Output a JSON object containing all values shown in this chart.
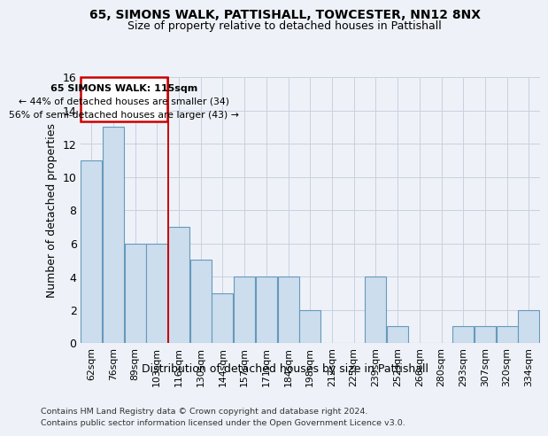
{
  "title1": "65, SIMONS WALK, PATTISHALL, TOWCESTER, NN12 8NX",
  "title2": "Size of property relative to detached houses in Pattishall",
  "xlabel": "Distribution of detached houses by size in Pattishall",
  "ylabel": "Number of detached properties",
  "categories": [
    "62sqm",
    "76sqm",
    "89sqm",
    "103sqm",
    "116sqm",
    "130sqm",
    "144sqm",
    "157sqm",
    "171sqm",
    "184sqm",
    "198sqm",
    "212sqm",
    "225sqm",
    "239sqm",
    "252sqm",
    "266sqm",
    "280sqm",
    "293sqm",
    "307sqm",
    "320sqm",
    "334sqm"
  ],
  "values": [
    11,
    13,
    6,
    6,
    7,
    5,
    3,
    4,
    4,
    4,
    2,
    0,
    0,
    4,
    1,
    0,
    0,
    1,
    1,
    1,
    2
  ],
  "bar_color": "#ccdded",
  "bar_edge_color": "#6699bb",
  "annotation_title": "65 SIMONS WALK: 115sqm",
  "annotation_line1": "← 44% of detached houses are smaller (34)",
  "annotation_line2": "56% of semi-detached houses are larger (43) →",
  "ylim": [
    0,
    16
  ],
  "yticks": [
    0,
    2,
    4,
    6,
    8,
    10,
    12,
    14,
    16
  ],
  "footer1": "Contains HM Land Registry data © Crown copyright and database right 2024.",
  "footer2": "Contains public sector information licensed under the Open Government Licence v3.0.",
  "bg_color": "#eef2f8",
  "grid_color": "#c8d0e0",
  "red_line_color": "#cc0000",
  "ann_box_color": "#cc0000"
}
